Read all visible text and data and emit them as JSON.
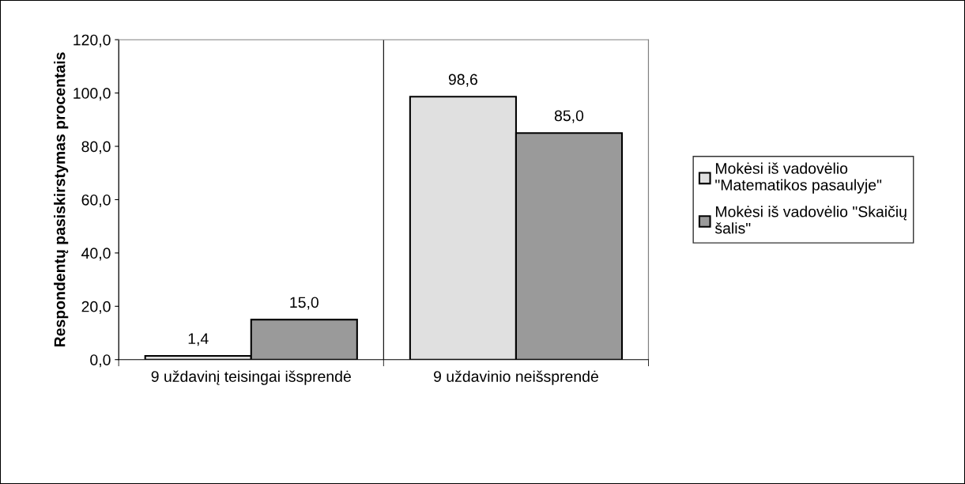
{
  "chart_data": {
    "type": "bar",
    "categories": [
      "9 uždavinį teisingai išsprendė",
      "9 uždavinio neišsprendė"
    ],
    "ylabel": "Respondentų pasiskirstymas procentais",
    "series": [
      {
        "name": "Mokėsi iš vadovėlio \"Matematikos pasaulyje\"",
        "color": "#e0e0e0",
        "values": [
          1.4,
          98.6
        ],
        "value_labels": [
          "1,4",
          "98,6"
        ]
      },
      {
        "name": "Mokėsi iš vadovėlio \"Skaičių šalis\"",
        "color": "#9a9a9a",
        "values": [
          15.0,
          85.0
        ],
        "value_labels": [
          "15,0",
          "85,0"
        ]
      }
    ],
    "ylim": [
      0,
      120
    ],
    "yticks": [
      {
        "value": 0,
        "label": "0,0"
      },
      {
        "value": 20,
        "label": "20,0"
      },
      {
        "value": 40,
        "label": "40,0"
      },
      {
        "value": 60,
        "label": "60,0"
      },
      {
        "value": 80,
        "label": "80,0"
      },
      {
        "value": 100,
        "label": "100,0"
      },
      {
        "value": 120,
        "label": "120,0"
      }
    ],
    "grid": "x",
    "legend": "right"
  }
}
